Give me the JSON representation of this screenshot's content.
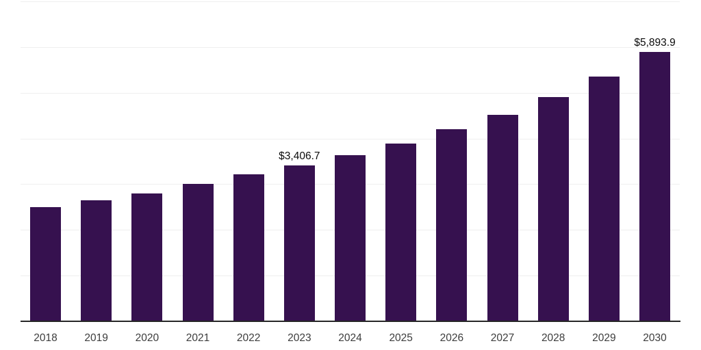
{
  "chart_data": {
    "type": "bar",
    "title": "",
    "xlabel": "",
    "ylabel": "",
    "categories": [
      "2018",
      "2019",
      "2020",
      "2021",
      "2022",
      "2023",
      "2024",
      "2025",
      "2026",
      "2027",
      "2028",
      "2029",
      "2030"
    ],
    "values": [
      2500,
      2650,
      2800,
      3000,
      3210,
      3406.7,
      3630,
      3890,
      4200,
      4520,
      4900,
      5360,
      5893.9
    ],
    "annotations": [
      {
        "category": "2023",
        "label": "$3,406.7"
      },
      {
        "category": "2030",
        "label": "$5,893.9"
      }
    ],
    "ylim": [
      0,
      7000
    ],
    "gridline_step": 1000,
    "grid": "horizontal",
    "y_axis_labels_visible": false,
    "legend": "none",
    "colors": {
      "bar": "#36114F",
      "axis_line": "#262626",
      "gridline": "#EFEFEF",
      "tick_label": "#3C3C3C",
      "annotation": "#0A0A0A",
      "background": "#FFFFFF"
    }
  }
}
